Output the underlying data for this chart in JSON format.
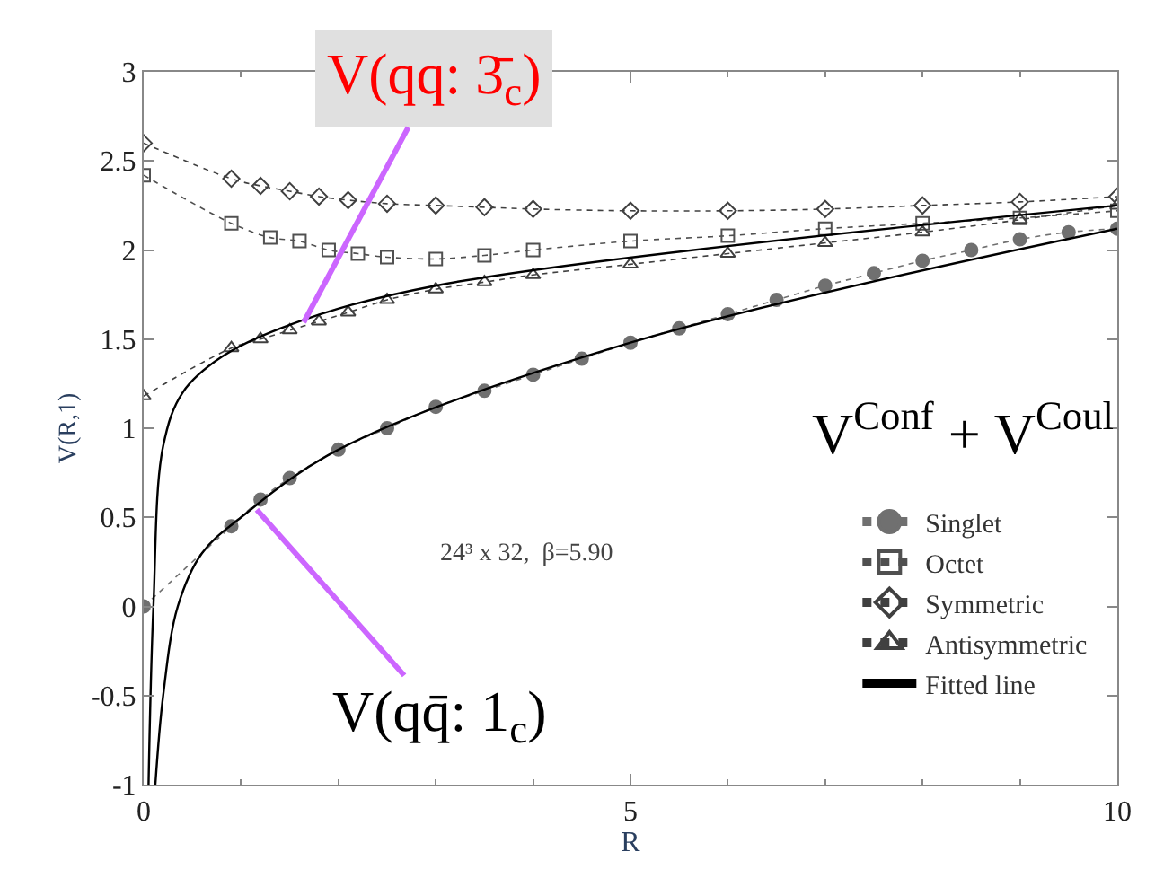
{
  "chart_data": {
    "type": "line",
    "xlabel": "R",
    "ylabel": "V(R,1)",
    "xlim": [
      0,
      10
    ],
    "xticks": [
      0,
      5,
      10
    ],
    "ylim": [
      -1,
      3
    ],
    "yticks": [
      -1,
      -0.5,
      0,
      0.5,
      1,
      1.5,
      2,
      2.5,
      3
    ],
    "legend": "bottom right",
    "series": [
      {
        "name": "Singlet",
        "color": "#707070",
        "marker": "circle",
        "line_style": "dotted",
        "x": [
          0,
          0.9,
          1.2,
          1.5,
          2,
          2.5,
          3,
          3.5,
          4,
          4.5,
          5,
          5.5,
          6,
          6.5,
          7,
          7.5,
          8,
          8.5,
          9,
          9.5,
          10
        ],
        "values": [
          0,
          0.45,
          0.6,
          0.72,
          0.88,
          1.0,
          1.12,
          1.21,
          1.3,
          1.39,
          1.48,
          1.56,
          1.64,
          1.72,
          1.8,
          1.87,
          1.94,
          2.0,
          2.06,
          2.1,
          2.12
        ]
      },
      {
        "name": "Octet",
        "color": "#505050",
        "marker": "square",
        "line_style": "dotted",
        "x": [
          0,
          0.9,
          1.3,
          1.6,
          1.9,
          2.2,
          2.5,
          3,
          3.5,
          4,
          5,
          6,
          7,
          8,
          9,
          10
        ],
        "values": [
          2.42,
          2.15,
          2.07,
          2.05,
          2.0,
          1.98,
          1.96,
          1.95,
          1.97,
          2.0,
          2.05,
          2.08,
          2.12,
          2.15,
          2.18,
          2.22
        ]
      },
      {
        "name": "Symmetric",
        "color": "#404040",
        "marker": "diamond",
        "line_style": "dotted",
        "x": [
          0,
          0.9,
          1.2,
          1.5,
          1.8,
          2.1,
          2.5,
          3,
          3.5,
          4,
          5,
          6,
          7,
          8,
          9,
          10
        ],
        "values": [
          2.6,
          2.4,
          2.36,
          2.33,
          2.3,
          2.28,
          2.26,
          2.25,
          2.24,
          2.23,
          2.22,
          2.22,
          2.23,
          2.25,
          2.27,
          2.3
        ]
      },
      {
        "name": "Antisymmetric",
        "color": "#404040",
        "marker": "triangle",
        "line_style": "dotted",
        "x": [
          0,
          0.9,
          1.2,
          1.5,
          1.8,
          2.1,
          2.5,
          3,
          3.5,
          4,
          5,
          6,
          7,
          8,
          9,
          10
        ],
        "values": [
          1.18,
          1.45,
          1.5,
          1.55,
          1.6,
          1.65,
          1.72,
          1.78,
          1.82,
          1.86,
          1.92,
          1.98,
          2.04,
          2.1,
          2.17,
          2.25
        ]
      },
      {
        "name": "Fitted line",
        "color": "#000000",
        "marker": "none",
        "line_style": "solid",
        "x": [
          0.12,
          0.2,
          0.35,
          0.6,
          1,
          2,
          5,
          10
        ],
        "values": [
          -1,
          -0.5,
          0,
          0.3,
          0.5,
          0.88,
          1.48,
          2.12
        ]
      },
      {
        "color": "#000000",
        "marker": "none",
        "line_style": "solid",
        "x": [
          0.05,
          0.1,
          0.2,
          0.4,
          0.8,
          1.5,
          3,
          10
        ],
        "values": [
          -1,
          0,
          0.9,
          1.2,
          1.4,
          1.58,
          1.8,
          2.25
        ]
      }
    ],
    "annotations": [
      {
        "text": "24³ x 32,  β=5.90"
      },
      {
        "text": "V(qq: 3̄$_{c}$)",
        "x": 1.6,
        "y": 1.55
      },
      {
        "text": "V$^{Conf}$ + V$^{Coul}$"
      },
      {
        "text": "V(qq̄: 1$_{c}$)",
        "x": 1.1,
        "y": 0.58
      }
    ]
  }
}
